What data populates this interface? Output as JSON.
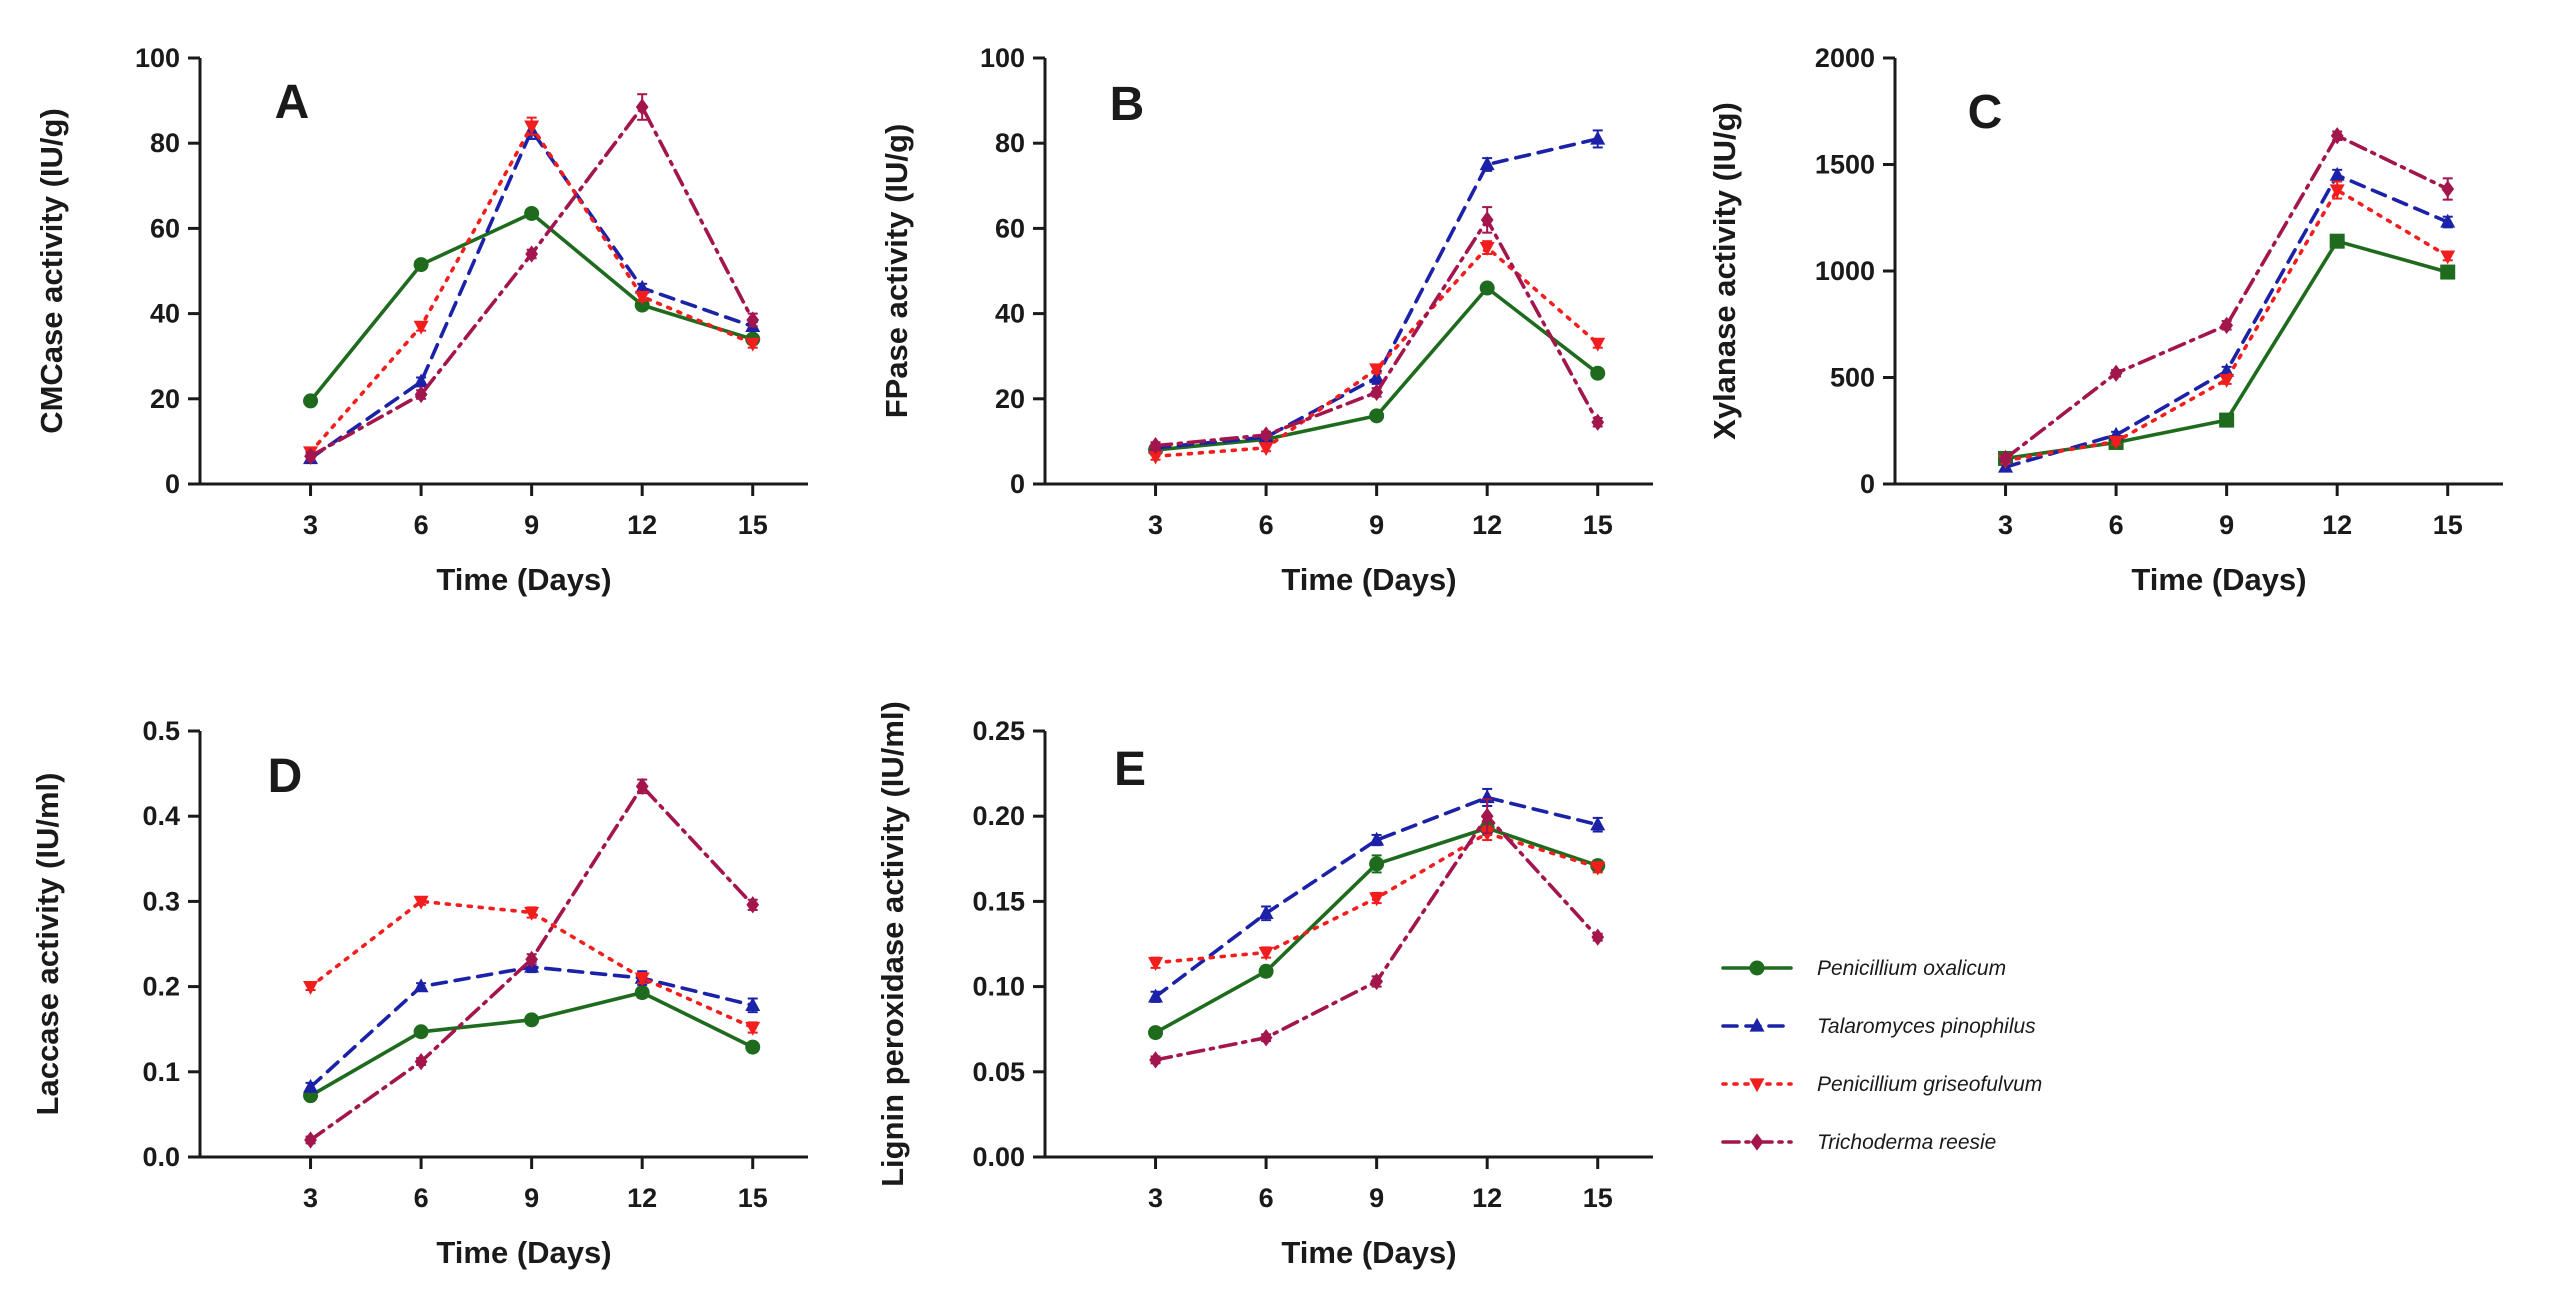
{
  "chart_data": [
    {
      "type": "line",
      "panel": "A",
      "xlabel": "Time (Days)",
      "ylabel": "CMCase activity  (IU/g)",
      "x": [
        3,
        6,
        9,
        12,
        15
      ],
      "xlim": [
        0,
        16.5
      ],
      "ylim": [
        0,
        100
      ],
      "y_ticks": [
        0,
        20,
        40,
        60,
        80,
        100
      ],
      "y_tick_labels": [
        "0",
        "20",
        "40",
        "60",
        "80",
        "100"
      ],
      "x_tick_labels": [
        "3",
        "6",
        "9",
        "12",
        "15"
      ],
      "series": [
        {
          "name": "Penicillium oxalicum",
          "values": [
            19.5,
            51.5,
            63.5,
            42.0,
            34.0
          ],
          "errors": [
            1.0,
            1.0,
            1.0,
            1.0,
            1.0
          ]
        },
        {
          "name": "Talaromyces pinophilus",
          "values": [
            6.0,
            24.0,
            83.0,
            46.0,
            37.0
          ],
          "errors": [
            1.0,
            1.0,
            2.0,
            1.0,
            1.0
          ]
        },
        {
          "name": "Penicillium griseofulvum",
          "values": [
            7.5,
            37.0,
            84.0,
            44.0,
            33.0
          ],
          "errors": [
            1.0,
            1.0,
            2.0,
            1.0,
            1.0
          ]
        },
        {
          "name": "Trichoderma reesie",
          "values": [
            6.5,
            21.0,
            54.0,
            88.5,
            38.5
          ],
          "errors": [
            1.0,
            1.0,
            1.0,
            3.0,
            1.5
          ]
        }
      ]
    },
    {
      "type": "line",
      "panel": "B",
      "xlabel": "Time (Days)",
      "ylabel": "FPase  activity  (IU/g)",
      "x": [
        3,
        6,
        9,
        12,
        15
      ],
      "xlim": [
        0,
        16.5
      ],
      "ylim": [
        0,
        100
      ],
      "y_ticks": [
        0,
        20,
        40,
        60,
        80,
        100
      ],
      "y_tick_labels": [
        "0",
        "20",
        "40",
        "60",
        "80",
        "100"
      ],
      "x_tick_labels": [
        "3",
        "6",
        "9",
        "12",
        "15"
      ],
      "series": [
        {
          "name": "Penicillium oxalicum",
          "values": [
            8.0,
            10.5,
            16.0,
            46.0,
            26.0
          ],
          "errors": [
            0.8,
            0.8,
            0.8,
            1.0,
            1.0
          ]
        },
        {
          "name": "Talaromyces pinophilus",
          "values": [
            8.5,
            11.0,
            25.0,
            75.0,
            81.0
          ],
          "errors": [
            0.8,
            0.8,
            1.5,
            1.5,
            2.0
          ]
        },
        {
          "name": "Penicillium griseofulvum",
          "values": [
            6.5,
            8.5,
            27.0,
            55.5,
            33.0
          ],
          "errors": [
            0.8,
            0.8,
            1.0,
            1.5,
            1.0
          ]
        },
        {
          "name": "Trichoderma reesie",
          "values": [
            9.0,
            11.5,
            21.5,
            62.0,
            14.5
          ],
          "errors": [
            0.8,
            0.8,
            1.0,
            3.0,
            1.0
          ]
        }
      ]
    },
    {
      "type": "line",
      "panel": "C",
      "xlabel": "Time (Days)",
      "ylabel": "Xylanase activity (IU/g)",
      "x": [
        3,
        6,
        9,
        12,
        15
      ],
      "xlim": [
        0,
        16.5
      ],
      "ylim": [
        0,
        2000
      ],
      "y_ticks": [
        0,
        500,
        1000,
        1500,
        2000
      ],
      "y_tick_labels": [
        "0",
        "500",
        "1000",
        "1500",
        "2000"
      ],
      "x_tick_labels": [
        "3",
        "6",
        "9",
        "12",
        "15"
      ],
      "series": [
        {
          "name": "Penicillium oxalicum",
          "values": [
            120,
            195,
            300,
            1140,
            995
          ],
          "errors": [
            15,
            15,
            15,
            20,
            20
          ]
        },
        {
          "name": "Talaromyces pinophilus",
          "values": [
            80,
            230,
            530,
            1450,
            1230
          ],
          "errors": [
            15,
            15,
            20,
            25,
            25
          ]
        },
        {
          "name": "Penicillium griseofulvum",
          "values": [
            110,
            200,
            490,
            1380,
            1070
          ],
          "errors": [
            15,
            15,
            20,
            40,
            20
          ]
        },
        {
          "name": "Trichoderma reesie",
          "values": [
            120,
            520,
            745,
            1635,
            1385
          ],
          "errors": [
            15,
            15,
            20,
            20,
            50
          ]
        }
      ]
    },
    {
      "type": "line",
      "panel": "D",
      "xlabel": "Time (Days)",
      "ylabel": "Laccase activity (IU/ml)",
      "x": [
        3,
        6,
        9,
        12,
        15
      ],
      "xlim": [
        0,
        16.5
      ],
      "ylim": [
        0,
        0.5
      ],
      "y_ticks": [
        0,
        0.1,
        0.2,
        0.3,
        0.4,
        0.5
      ],
      "y_tick_labels": [
        "0.0",
        "0.1",
        "0.2",
        "0.3",
        "0.4",
        "0.5"
      ],
      "x_tick_labels": [
        "3",
        "6",
        "9",
        "12",
        "15"
      ],
      "series": [
        {
          "name": "Penicillium oxalicum",
          "values": [
            0.072,
            0.147,
            0.161,
            0.193,
            0.129
          ],
          "errors": [
            0.005,
            0.004,
            0.004,
            0.006,
            0.005
          ]
        },
        {
          "name": "Talaromyces pinophilus",
          "values": [
            0.082,
            0.2,
            0.223,
            0.21,
            0.178
          ],
          "errors": [
            0.005,
            0.004,
            0.006,
            0.008,
            0.008
          ]
        },
        {
          "name": "Penicillium griseofulvum",
          "values": [
            0.2,
            0.3,
            0.287,
            0.21,
            0.152
          ],
          "errors": [
            0.004,
            0.004,
            0.006,
            0.006,
            0.006
          ]
        },
        {
          "name": "Trichoderma reesie",
          "values": [
            0.02,
            0.112,
            0.232,
            0.435,
            0.296
          ],
          "errors": [
            0.004,
            0.004,
            0.006,
            0.008,
            0.006
          ]
        }
      ]
    },
    {
      "type": "line",
      "panel": "E",
      "xlabel": "Time (Days)",
      "ylabel": "Lignin peroxidase activity (IU/ml)",
      "x": [
        3,
        6,
        9,
        12,
        15
      ],
      "xlim": [
        0,
        16.5
      ],
      "ylim": [
        0,
        0.25
      ],
      "y_ticks": [
        0,
        0.05,
        0.1,
        0.15,
        0.2,
        0.25
      ],
      "y_tick_labels": [
        "0.00",
        "0.05",
        "0.10",
        "0.15",
        "0.20",
        "0.25"
      ],
      "x_tick_labels": [
        "3",
        "6",
        "9",
        "12",
        "15"
      ],
      "series": [
        {
          "name": "Penicillium oxalicum",
          "values": [
            0.073,
            0.109,
            0.172,
            0.193,
            0.171
          ],
          "errors": [
            0.002,
            0.003,
            0.005,
            0.004,
            0.003
          ]
        },
        {
          "name": "Talaromyces pinophilus",
          "values": [
            0.094,
            0.143,
            0.186,
            0.211,
            0.195
          ],
          "errors": [
            0.003,
            0.004,
            0.003,
            0.005,
            0.004
          ]
        },
        {
          "name": "Penicillium griseofulvum",
          "values": [
            0.114,
            0.12,
            0.152,
            0.19,
            0.17
          ],
          "errors": [
            0.003,
            0.003,
            0.003,
            0.004,
            0.003
          ]
        },
        {
          "name": "Trichoderma reesie",
          "values": [
            0.057,
            0.07,
            0.103,
            0.2,
            0.129
          ],
          "errors": [
            0.002,
            0.002,
            0.003,
            0.01,
            0.002
          ]
        }
      ]
    }
  ],
  "legend": {
    "placement": "right",
    "entries": [
      {
        "name": "Penicillium oxalicum",
        "color": "#1e6b1e",
        "marker": "circle",
        "dash": "solid"
      },
      {
        "name": "Talaromyces pinophilus",
        "color": "#1c22a8",
        "marker": "triangle-up",
        "dash": "dashed"
      },
      {
        "name": "Penicillium griseofulvum",
        "color": "#f21d1d",
        "marker": "triangle-down",
        "dash": "dotted"
      },
      {
        "name": "Trichoderma reesie",
        "color": "#a3154d",
        "marker": "diamond",
        "dash": "dash-dot"
      }
    ]
  }
}
